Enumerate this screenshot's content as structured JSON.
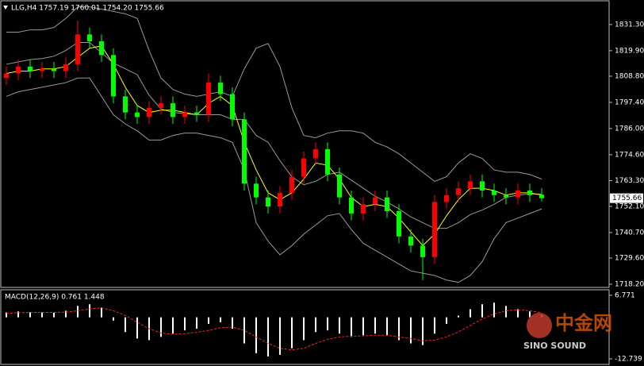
{
  "chart_data": [
    {
      "type": "candlestick",
      "title": "LLG,H4 1757.19 1760.01 1754.20 1755.66",
      "up_color": "#ff0000",
      "down_color": "#00ff00",
      "open": [
        1808,
        1810,
        1813,
        1811,
        1812,
        1811,
        1814,
        1827,
        1824,
        1818,
        1800,
        1793,
        1791,
        1795,
        1797,
        1791,
        1793,
        1792,
        1806,
        1801,
        1790,
        1762,
        1756,
        1752,
        1758,
        1765,
        1773,
        1777,
        1766,
        1756,
        1749,
        1753,
        1756,
        1750,
        1739,
        1735,
        1730,
        1754,
        1757,
        1760,
        1763,
        1759,
        1757,
        1756,
        1759,
        1757.19
      ],
      "high": [
        1813,
        1816,
        1816,
        1815,
        1815,
        1817,
        1833,
        1830,
        1827,
        1821,
        1803,
        1796,
        1798,
        1800,
        1800,
        1796,
        1796,
        1810,
        1809,
        1804,
        1793,
        1765,
        1759,
        1761,
        1768,
        1776,
        1780,
        1780,
        1769,
        1759,
        1756,
        1759,
        1759,
        1753,
        1742,
        1738,
        1757,
        1760,
        1763,
        1766,
        1766,
        1762,
        1760,
        1762,
        1762,
        1760.01
      ],
      "low": [
        1805,
        1807,
        1808,
        1808,
        1808,
        1808,
        1811,
        1821,
        1815,
        1797,
        1790,
        1788,
        1788,
        1792,
        1788,
        1788,
        1789,
        1789,
        1798,
        1787,
        1759,
        1753,
        1749,
        1749,
        1755,
        1762,
        1770,
        1763,
        1753,
        1746,
        1746,
        1750,
        1747,
        1736,
        1732,
        1720,
        1727,
        1751,
        1754,
        1757,
        1756,
        1754,
        1753,
        1753,
        1754,
        1754.2
      ],
      "close": [
        1810,
        1813,
        1811,
        1812,
        1811,
        1814,
        1827,
        1824,
        1818,
        1800,
        1793,
        1791,
        1795,
        1797,
        1791,
        1793,
        1792,
        1806,
        1801,
        1790,
        1762,
        1756,
        1752,
        1758,
        1765,
        1773,
        1777,
        1766,
        1756,
        1749,
        1753,
        1756,
        1750,
        1739,
        1735,
        1730,
        1754,
        1757,
        1760,
        1763,
        1759,
        1757,
        1756,
        1759,
        1757,
        1755.66
      ],
      "series": [
        {
          "color": "#9a9a9a",
          "values": [
            1828,
            1828,
            1829,
            1829,
            1830,
            1834,
            1839,
            1839,
            1838,
            1837,
            1836,
            1834,
            1820,
            1808,
            1803,
            1801,
            1800,
            1801,
            1802,
            1800,
            1812,
            1821,
            1823,
            1813,
            1795,
            1783,
            1782,
            1784,
            1785,
            1785,
            1784,
            1780,
            1778,
            1775,
            1771,
            1767,
            1763,
            1765,
            1771,
            1775,
            1773,
            1768,
            1767,
            1767,
            1766,
            1764
          ]
        },
        {
          "color": "#9a9a9a",
          "values": [
            1814,
            1815,
            1816,
            1816.5,
            1817.5,
            1820,
            1823.5,
            1823.5,
            1819,
            1814.5,
            1812,
            1809.5,
            1800.5,
            1794.5,
            1793,
            1792.5,
            1792,
            1792,
            1792,
            1790,
            1790,
            1783,
            1780,
            1772,
            1765,
            1761.5,
            1763,
            1766,
            1767,
            1763.5,
            1760,
            1756.5,
            1754,
            1751,
            1747.5,
            1745,
            1742.5,
            1742.5,
            1745,
            1748.5,
            1750.5,
            1753,
            1756,
            1757,
            1757.5,
            1757.5
          ]
        },
        {
          "color": "#9a9a9a",
          "values": [
            1800,
            1802,
            1803,
            1804,
            1805,
            1806,
            1808,
            1808,
            1800,
            1792,
            1788,
            1785,
            1781,
            1781,
            1783,
            1784,
            1784,
            1783,
            1782,
            1780,
            1768,
            1745,
            1737,
            1731,
            1735,
            1740,
            1744,
            1748,
            1749,
            1742,
            1736,
            1733,
            1730,
            1727,
            1724,
            1723,
            1722,
            1720,
            1719,
            1722,
            1728,
            1738,
            1745,
            1747,
            1749,
            1751
          ]
        },
        {
          "color": "#ffff00",
          "values": [
            1810,
            1811,
            1811,
            1812,
            1812,
            1813,
            1817,
            1821,
            1822,
            1814,
            1804,
            1796,
            1793,
            1794,
            1794,
            1793,
            1792,
            1797,
            1800,
            1796,
            1780,
            1768,
            1758,
            1755,
            1758,
            1764,
            1771,
            1770,
            1764,
            1756,
            1752,
            1753,
            1752,
            1747,
            1741,
            1735,
            1740,
            1748,
            1755,
            1760,
            1760,
            1759,
            1757,
            1758,
            1758,
            1757
          ]
        }
      ],
      "ylim": [
        1716.8,
        1841.3
      ],
      "yticks": [
        {
          "value": 1831.3,
          "label": "1831.30"
        },
        {
          "value": 1819.9,
          "label": "1819.90"
        },
        {
          "value": 1808.8,
          "label": "1808.80"
        },
        {
          "value": 1797.4,
          "label": "1797.40"
        },
        {
          "value": 1786.0,
          "label": "1786.00"
        },
        {
          "value": 1774.6,
          "label": "1774.60"
        },
        {
          "value": 1763.3,
          "label": "1763.30"
        },
        {
          "value": 1752.1,
          "label": "1752.10"
        },
        {
          "value": 1740.7,
          "label": "1740.70"
        },
        {
          "value": 1729.6,
          "label": "1729.60"
        },
        {
          "value": 1718.2,
          "label": "1718.20"
        }
      ]
    },
    {
      "type": "macd",
      "title": "MACD(12,26,9) 0.761 1.448",
      "histogram_color": "#ffffff",
      "signal_color": "#ff2020",
      "histogram": [
        1.5,
        1.8,
        1.6,
        1.5,
        1.4,
        2.0,
        3.5,
        4.0,
        3.0,
        -1.0,
        -4.5,
        -6.5,
        -7.0,
        -6.0,
        -5.0,
        -4.0,
        -3.5,
        -2.0,
        -1.5,
        -3.5,
        -8.0,
        -11.0,
        -12.0,
        -11.5,
        -9.5,
        -7.0,
        -4.5,
        -4.0,
        -5.0,
        -6.0,
        -5.5,
        -5.0,
        -5.5,
        -7.0,
        -8.0,
        -8.5,
        -5.0,
        -2.0,
        0.5,
        2.5,
        4.0,
        4.5,
        3.5,
        2.5,
        1.8,
        0.761
      ],
      "signal": [
        1.2,
        1.4,
        1.5,
        1.5,
        1.5,
        1.6,
        2.0,
        2.6,
        2.9,
        2.0,
        0.6,
        -1.5,
        -3.5,
        -4.8,
        -5.2,
        -5.0,
        -4.6,
        -4.0,
        -3.2,
        -3.0,
        -4.0,
        -6.0,
        -8.0,
        -9.5,
        -10.0,
        -9.5,
        -8.0,
        -6.8,
        -6.0,
        -5.8,
        -5.7,
        -5.5,
        -5.5,
        -6.0,
        -6.5,
        -7.2,
        -7.0,
        -6.0,
        -4.5,
        -2.5,
        -0.5,
        1.0,
        2.0,
        2.3,
        2.0,
        1.448
      ],
      "ylim": [
        -14.2,
        8.2
      ],
      "yticks": [
        6.771,
        -12.739
      ]
    }
  ],
  "watermark": {
    "title": "中金网",
    "subtitle": "SINO SOUND"
  }
}
